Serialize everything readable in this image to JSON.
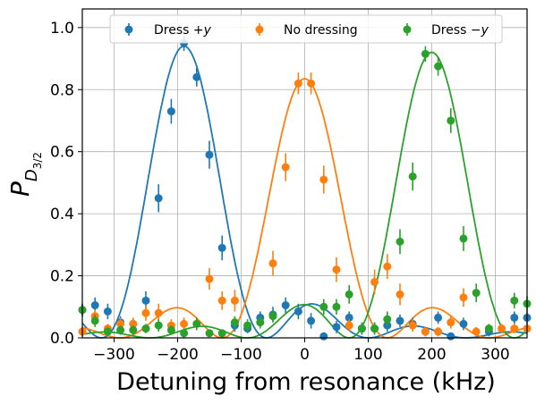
{
  "chart_data": {
    "type": "scatter",
    "xlabel": "Detuning from resonance (kHz)",
    "ylabel_main": "P",
    "ylabel_sub": "D",
    "ylabel_subsub": "3/2",
    "xlim": [
      -350,
      350
    ],
    "ylim": [
      0,
      1.06
    ],
    "xticks": [
      -300,
      -200,
      -100,
      0,
      100,
      200,
      300
    ],
    "yticks": [
      0.0,
      0.2,
      0.4,
      0.6,
      0.8,
      1.0
    ],
    "xtick_labels": [
      "−300",
      "−200",
      "−100",
      "0",
      "100",
      "200",
      "300"
    ],
    "ytick_labels": [
      "0.0",
      "0.2",
      "0.4",
      "0.6",
      "0.8",
      "1.0"
    ],
    "grid": true,
    "legend_position": "top-center",
    "series": [
      {
        "name_prefix": "Dress +",
        "name_var": "y",
        "color": "#1f77b4",
        "center": -190,
        "amplitude": 0.94,
        "points": [
          {
            "x": -350,
            "y": 0.09,
            "err": 0.02
          },
          {
            "x": -330,
            "y": 0.105,
            "err": 0.025
          },
          {
            "x": -310,
            "y": 0.085,
            "err": 0.025
          },
          {
            "x": -290,
            "y": 0.05,
            "err": 0.02
          },
          {
            "x": -270,
            "y": 0.045,
            "err": 0.02
          },
          {
            "x": -250,
            "y": 0.12,
            "err": 0.03
          },
          {
            "x": -230,
            "y": 0.45,
            "err": 0.045
          },
          {
            "x": -210,
            "y": 0.73,
            "err": 0.04
          },
          {
            "x": -190,
            "y": 0.95,
            "err": 0.025
          },
          {
            "x": -170,
            "y": 0.84,
            "err": 0.03
          },
          {
            "x": -150,
            "y": 0.59,
            "err": 0.045
          },
          {
            "x": -130,
            "y": 0.29,
            "err": 0.04
          },
          {
            "x": -110,
            "y": 0.04,
            "err": 0.02
          },
          {
            "x": -90,
            "y": 0.03,
            "err": 0.015
          },
          {
            "x": -70,
            "y": 0.065,
            "err": 0.02
          },
          {
            "x": -50,
            "y": 0.075,
            "err": 0.025
          },
          {
            "x": -30,
            "y": 0.105,
            "err": 0.025
          },
          {
            "x": -10,
            "y": 0.085,
            "err": 0.025
          },
          {
            "x": 10,
            "y": 0.055,
            "err": 0.025
          },
          {
            "x": 30,
            "y": 0.005,
            "err": 0.01
          },
          {
            "x": 50,
            "y": 0.035,
            "err": 0.02
          },
          {
            "x": 70,
            "y": 0.065,
            "err": 0.02
          },
          {
            "x": 90,
            "y": 0.03,
            "err": 0.02
          },
          {
            "x": 110,
            "y": 0.03,
            "err": 0.02
          },
          {
            "x": 130,
            "y": 0.04,
            "err": 0.02
          },
          {
            "x": 150,
            "y": 0.055,
            "err": 0.02
          },
          {
            "x": 170,
            "y": 0.045,
            "err": 0.02
          },
          {
            "x": 190,
            "y": 0.02,
            "err": 0.015
          },
          {
            "x": 210,
            "y": 0.065,
            "err": 0.02
          },
          {
            "x": 230,
            "y": 0.005,
            "err": 0.01
          },
          {
            "x": 250,
            "y": 0.045,
            "err": 0.02
          },
          {
            "x": 290,
            "y": 0.02,
            "err": 0.015
          },
          {
            "x": 330,
            "y": 0.065,
            "err": 0.02
          },
          {
            "x": 350,
            "y": 0.065,
            "err": 0.02
          }
        ]
      },
      {
        "name": "No dressing",
        "color": "#ff7f0e",
        "center": 0,
        "amplitude": 0.835,
        "points": [
          {
            "x": -350,
            "y": 0.02,
            "err": 0.015
          },
          {
            "x": -330,
            "y": 0.07,
            "err": 0.02
          },
          {
            "x": -310,
            "y": 0.03,
            "err": 0.015
          },
          {
            "x": -290,
            "y": 0.045,
            "err": 0.02
          },
          {
            "x": -270,
            "y": 0.045,
            "err": 0.02
          },
          {
            "x": -250,
            "y": 0.08,
            "err": 0.025
          },
          {
            "x": -230,
            "y": 0.08,
            "err": 0.03
          },
          {
            "x": -210,
            "y": 0.04,
            "err": 0.02
          },
          {
            "x": -190,
            "y": 0.045,
            "err": 0.02
          },
          {
            "x": -170,
            "y": 0.045,
            "err": 0.02
          },
          {
            "x": -150,
            "y": 0.19,
            "err": 0.035
          },
          {
            "x": -130,
            "y": 0.12,
            "err": 0.03
          },
          {
            "x": -110,
            "y": 0.12,
            "err": 0.035
          },
          {
            "x": -50,
            "y": 0.24,
            "err": 0.04
          },
          {
            "x": -30,
            "y": 0.55,
            "err": 0.045
          },
          {
            "x": -10,
            "y": 0.82,
            "err": 0.035
          },
          {
            "x": 10,
            "y": 0.82,
            "err": 0.035
          },
          {
            "x": 30,
            "y": 0.51,
            "err": 0.045
          },
          {
            "x": 50,
            "y": 0.22,
            "err": 0.04
          },
          {
            "x": 70,
            "y": 0.04,
            "err": 0.02
          },
          {
            "x": 110,
            "y": 0.18,
            "err": 0.04
          },
          {
            "x": 130,
            "y": 0.23,
            "err": 0.04
          },
          {
            "x": 150,
            "y": 0.14,
            "err": 0.035
          },
          {
            "x": 170,
            "y": 0.04,
            "err": 0.02
          },
          {
            "x": 190,
            "y": 0.02,
            "err": 0.015
          },
          {
            "x": 210,
            "y": 0.02,
            "err": 0.015
          },
          {
            "x": 230,
            "y": 0.05,
            "err": 0.02
          },
          {
            "x": 250,
            "y": 0.13,
            "err": 0.03
          },
          {
            "x": 270,
            "y": 0.02,
            "err": 0.015
          },
          {
            "x": 310,
            "y": 0.03,
            "err": 0.015
          },
          {
            "x": 330,
            "y": 0.03,
            "err": 0.015
          },
          {
            "x": 350,
            "y": 0.03,
            "err": 0.015
          }
        ]
      },
      {
        "name_prefix": "Dress −",
        "name_var": "y",
        "color": "#2ca02c",
        "center": 200,
        "amplitude": 0.92,
        "points": [
          {
            "x": -350,
            "y": 0.09,
            "err": 0.02
          },
          {
            "x": -330,
            "y": 0.055,
            "err": 0.02
          },
          {
            "x": -310,
            "y": 0.02,
            "err": 0.015
          },
          {
            "x": -290,
            "y": 0.025,
            "err": 0.015
          },
          {
            "x": -270,
            "y": 0.025,
            "err": 0.015
          },
          {
            "x": -250,
            "y": 0.03,
            "err": 0.015
          },
          {
            "x": -230,
            "y": 0.04,
            "err": 0.02
          },
          {
            "x": -210,
            "y": 0.025,
            "err": 0.015
          },
          {
            "x": -190,
            "y": 0.015,
            "err": 0.015
          },
          {
            "x": -170,
            "y": 0.045,
            "err": 0.02
          },
          {
            "x": -150,
            "y": 0.015,
            "err": 0.01
          },
          {
            "x": -130,
            "y": 0.015,
            "err": 0.01
          },
          {
            "x": -110,
            "y": 0.05,
            "err": 0.02
          },
          {
            "x": -90,
            "y": 0.04,
            "err": 0.02
          },
          {
            "x": -70,
            "y": 0.05,
            "err": 0.02
          },
          {
            "x": -50,
            "y": 0.07,
            "err": 0.02
          },
          {
            "x": 30,
            "y": 0.1,
            "err": 0.025
          },
          {
            "x": 50,
            "y": 0.1,
            "err": 0.025
          },
          {
            "x": 70,
            "y": 0.14,
            "err": 0.03
          },
          {
            "x": 90,
            "y": 0.03,
            "err": 0.02
          },
          {
            "x": 110,
            "y": 0.03,
            "err": 0.02
          },
          {
            "x": 130,
            "y": 0.06,
            "err": 0.025
          },
          {
            "x": 150,
            "y": 0.31,
            "err": 0.04
          },
          {
            "x": 170,
            "y": 0.52,
            "err": 0.045
          },
          {
            "x": 190,
            "y": 0.915,
            "err": 0.025
          },
          {
            "x": 210,
            "y": 0.875,
            "err": 0.03
          },
          {
            "x": 230,
            "y": 0.7,
            "err": 0.04
          },
          {
            "x": 250,
            "y": 0.32,
            "err": 0.04
          },
          {
            "x": 270,
            "y": 0.145,
            "err": 0.03
          },
          {
            "x": 290,
            "y": 0.03,
            "err": 0.015
          },
          {
            "x": 330,
            "y": 0.12,
            "err": 0.025
          },
          {
            "x": 350,
            "y": 0.11,
            "err": 0.025
          }
        ]
      }
    ]
  }
}
